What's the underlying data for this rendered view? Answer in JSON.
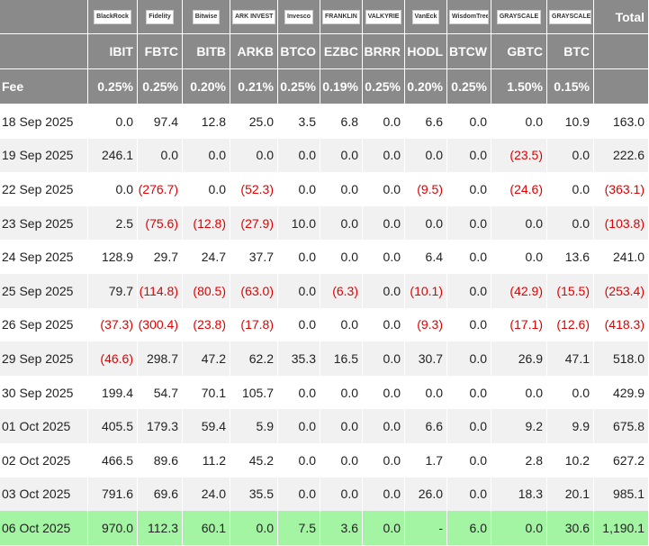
{
  "header": {
    "logos": [
      "BlackRock",
      "Fidelity",
      "Bitwise",
      "ARK INVEST",
      "Invesco",
      "FRANKLIN TEMPLETON",
      "VALKYRIE",
      "VanEck",
      "WisdomTree",
      "GRAYSCALE",
      "GRAYSCALE"
    ],
    "total": "Total",
    "tickers": [
      "IBIT",
      "FBTC",
      "BITB",
      "ARKB",
      "BTCO",
      "EZBC",
      "BRRR",
      "HODL",
      "BTCW",
      "GBTC",
      "BTC"
    ],
    "fee_label": "Fee",
    "fees": [
      "0.25%",
      "0.25%",
      "0.20%",
      "0.21%",
      "0.25%",
      "0.19%",
      "0.25%",
      "0.20%",
      "0.25%",
      "1.50%",
      "0.15%"
    ]
  },
  "table": {
    "rows": [
      [
        "18 Sep 2025",
        "0.0",
        "97.4",
        "12.8",
        "25.0",
        "3.5",
        "6.8",
        "0.0",
        "6.6",
        "0.0",
        "0.0",
        "10.9",
        "163.0"
      ],
      [
        "19 Sep 2025",
        "246.1",
        "0.0",
        "0.0",
        "0.0",
        "0.0",
        "0.0",
        "0.0",
        "0.0",
        "0.0",
        "(23.5)",
        "0.0",
        "222.6"
      ],
      [
        "22 Sep 2025",
        "0.0",
        "(276.7)",
        "0.0",
        "(52.3)",
        "0.0",
        "0.0",
        "0.0",
        "(9.5)",
        "0.0",
        "(24.6)",
        "0.0",
        "(363.1)"
      ],
      [
        "23 Sep 2025",
        "2.5",
        "(75.6)",
        "(12.8)",
        "(27.9)",
        "10.0",
        "0.0",
        "0.0",
        "0.0",
        "0.0",
        "0.0",
        "0.0",
        "(103.8)"
      ],
      [
        "24 Sep 2025",
        "128.9",
        "29.7",
        "24.7",
        "37.7",
        "0.0",
        "0.0",
        "0.0",
        "6.4",
        "0.0",
        "0.0",
        "13.6",
        "241.0"
      ],
      [
        "25 Sep 2025",
        "79.7",
        "(114.8)",
        "(80.5)",
        "(63.0)",
        "0.0",
        "(6.3)",
        "0.0",
        "(10.1)",
        "0.0",
        "(42.9)",
        "(15.5)",
        "(253.4)"
      ],
      [
        "26 Sep 2025",
        "(37.3)",
        "(300.4)",
        "(23.8)",
        "(17.8)",
        "0.0",
        "0.0",
        "0.0",
        "(9.3)",
        "0.0",
        "(17.1)",
        "(12.6)",
        "(418.3)"
      ],
      [
        "29 Sep 2025",
        "(46.6)",
        "298.7",
        "47.2",
        "62.2",
        "35.3",
        "16.5",
        "0.0",
        "30.7",
        "0.0",
        "26.9",
        "47.1",
        "518.0"
      ],
      [
        "30 Sep 2025",
        "199.4",
        "54.7",
        "70.1",
        "105.7",
        "0.0",
        "0.0",
        "0.0",
        "0.0",
        "0.0",
        "0.0",
        "0.0",
        "429.9"
      ],
      [
        "01 Oct 2025",
        "405.5",
        "179.3",
        "59.4",
        "5.9",
        "0.0",
        "0.0",
        "0.0",
        "6.6",
        "0.0",
        "9.2",
        "9.9",
        "675.8"
      ],
      [
        "02 Oct 2025",
        "466.5",
        "89.6",
        "11.2",
        "45.2",
        "0.0",
        "0.0",
        "0.0",
        "1.7",
        "0.0",
        "2.8",
        "10.2",
        "627.2"
      ],
      [
        "03 Oct 2025",
        "791.6",
        "69.6",
        "24.0",
        "35.5",
        "0.0",
        "0.0",
        "0.0",
        "26.0",
        "0.0",
        "18.3",
        "20.1",
        "985.1"
      ],
      [
        "06 Oct 2025",
        "970.0",
        "112.3",
        "60.1",
        "0.0",
        "7.5",
        "3.6",
        "0.0",
        "-",
        "6.0",
        "0.0",
        "30.6",
        "1,190.1"
      ]
    ]
  }
}
